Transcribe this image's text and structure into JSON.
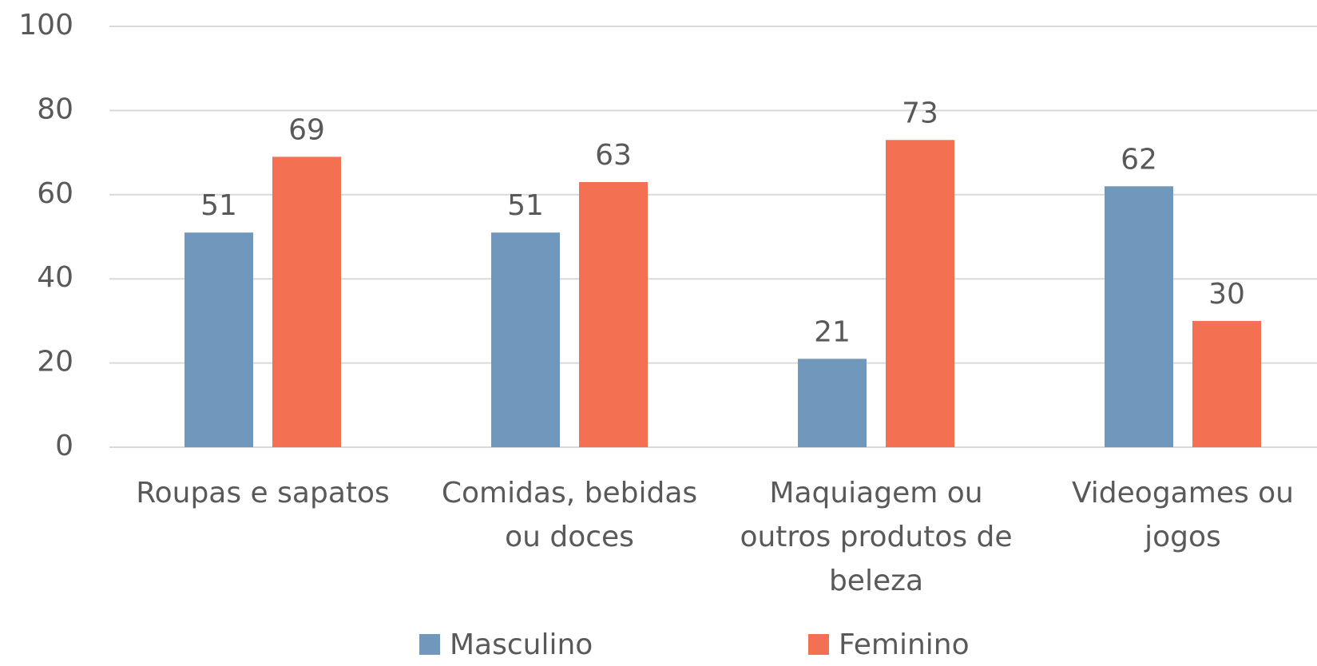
{
  "chart_data": {
    "type": "bar",
    "categories": [
      "Roupas e sapatos",
      "Comidas, bebidas ou doces",
      "Maquiagem ou outros produtos de beleza",
      "Videogames ou jogos"
    ],
    "series": [
      {
        "name": "Masculino",
        "color": "#7098bc",
        "values": [
          51,
          51,
          21,
          62
        ]
      },
      {
        "name": "Feminino",
        "color": "#f37052",
        "values": [
          69,
          63,
          73,
          30
        ]
      }
    ],
    "ylim": [
      0,
      100
    ],
    "yticks": [
      0,
      20,
      40,
      60,
      80,
      100
    ],
    "grid": true,
    "legend": "bottom"
  }
}
